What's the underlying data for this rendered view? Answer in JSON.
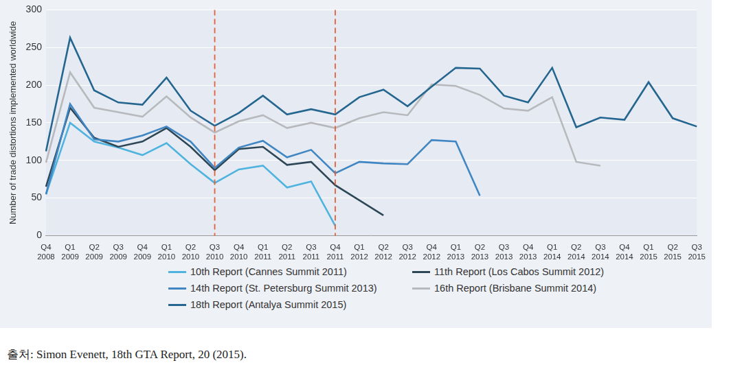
{
  "chart_data": {
    "type": "line",
    "y_label": "Number of trade distortions implemented worldwide",
    "source": "출처: Simon Evenett, 18th GTA Report, 20 (2015).",
    "categories": [
      "Q4 2008",
      "Q1 2009",
      "Q2 2009",
      "Q3 2009",
      "Q4 2009",
      "Q1 2010",
      "Q2 2010",
      "Q3 2010",
      "Q4 2010",
      "Q1 2011",
      "Q2 2011",
      "Q3 2011",
      "Q4 2011",
      "Q1 2012",
      "Q2 2012",
      "Q3 2012",
      "Q4 2012",
      "Q1 2013",
      "Q2 2013",
      "Q3 2013",
      "Q4 2013",
      "Q1 2014",
      "Q2 2014",
      "Q3 2014",
      "Q4 2014",
      "Q1 2015",
      "Q2 2015",
      "Q3 2015"
    ],
    "series": [
      {
        "name": "10th Report (Cannes Summit 2011)",
        "color": "#4fb3df",
        "values": [
          55,
          150,
          125,
          117,
          107,
          123,
          95,
          70,
          88,
          93,
          64,
          72,
          13,
          null,
          null,
          null,
          null,
          null,
          null,
          null,
          null,
          null,
          null,
          null,
          null,
          null,
          null,
          null
        ]
      },
      {
        "name": "11th Report (Los Cabos Summit 2012)",
        "color": "#2e4756",
        "values": [
          65,
          170,
          130,
          118,
          125,
          143,
          118,
          87,
          115,
          118,
          94,
          98,
          67,
          47,
          27,
          null,
          null,
          null,
          null,
          null,
          null,
          null,
          null,
          null,
          null,
          null,
          null,
          null
        ]
      },
      {
        "name": "14th Report (St. Petersburg Summit 2013)",
        "color": "#3f86c2",
        "values": [
          55,
          175,
          128,
          125,
          133,
          145,
          125,
          90,
          117,
          126,
          104,
          114,
          83,
          98,
          96,
          95,
          127,
          125,
          53,
          null,
          null,
          null,
          null,
          null,
          null,
          null,
          null,
          null
        ]
      },
      {
        "name": "16th Report (Brisbane Summit 2014)",
        "color": "#b7b9bc",
        "values": [
          97,
          217,
          170,
          164,
          158,
          185,
          157,
          137,
          152,
          160,
          143,
          150,
          143,
          156,
          164,
          160,
          201,
          199,
          187,
          169,
          166,
          184,
          98,
          93,
          null,
          null,
          null,
          null
        ]
      },
      {
        "name": "18th Report (Antalya Summit 2015)",
        "color": "#24668f",
        "values": [
          112,
          263,
          193,
          177,
          174,
          210,
          166,
          146,
          163,
          186,
          161,
          168,
          161,
          184,
          194,
          172,
          198,
          223,
          222,
          186,
          177,
          223,
          144,
          157,
          154,
          204,
          156,
          145
        ]
      }
    ],
    "vertical_lines": [
      {
        "x": "Q3 2010",
        "color": "#e0623a",
        "line_style": "dashed"
      },
      {
        "x": "Q4 2011",
        "color": "#e0623a",
        "line_style": "dashed"
      }
    ],
    "ylim": [
      0,
      300
    ],
    "yticks": [
      0,
      50,
      100,
      150,
      200,
      250,
      300
    ],
    "grid": true,
    "legend": "bottom"
  }
}
